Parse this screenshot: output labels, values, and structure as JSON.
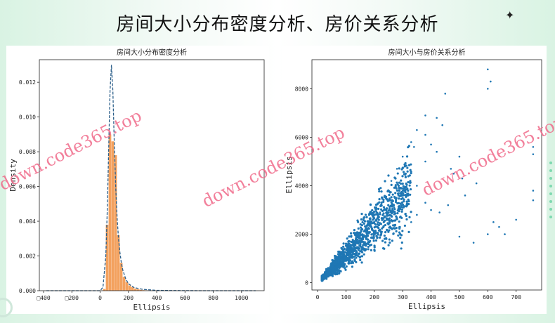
{
  "page": {
    "title": "房间大小分布密度分析、房价关系分析",
    "sparkle": "✦"
  },
  "watermarks": [
    "down.code365.top",
    "down.code365.top",
    "down.code365.top"
  ],
  "chart_data": [
    {
      "type": "bar",
      "title": "房间大小分布密度分析",
      "xlabel": "Ellipsis",
      "ylabel": "Density",
      "xlim": [
        -430,
        1160
      ],
      "ylim": [
        0,
        0.0133
      ],
      "xticks": [
        -400,
        -200,
        0,
        200,
        400,
        600,
        800,
        1000
      ],
      "xtick_labels": [
        "□400",
        "□200",
        "0",
        "200",
        "400",
        "600",
        "800",
        "1000"
      ],
      "yticks": [
        0.0,
        0.002,
        0.004,
        0.006,
        0.008,
        0.01,
        0.012
      ],
      "ytick_labels": [
        "0.000",
        "0.002",
        "0.004",
        "0.006",
        "0.008",
        "0.010",
        "0.012"
      ],
      "bin_edges": [
        20,
        40,
        60,
        80,
        100,
        120,
        140,
        160,
        180,
        200,
        220,
        240,
        260,
        280,
        300,
        320,
        340,
        360,
        380,
        400
      ],
      "values": [
        0.0001,
        0.0038,
        0.009,
        0.0086,
        0.0078,
        0.0032,
        0.0016,
        0.0008,
        0.0005,
        0.0003,
        0.0002,
        0.00012,
        8e-05,
        5e-05,
        3e-05,
        2e-05,
        1e-05,
        1e-05,
        1e-05
      ],
      "bar_color": "#f3a15e",
      "kde": {
        "x": [
          -380,
          0,
          20,
          40,
          50,
          60,
          70,
          80,
          90,
          100,
          110,
          120,
          130,
          140,
          150,
          160,
          180,
          200,
          240,
          300,
          400,
          500,
          700,
          1100
        ],
        "y": [
          0,
          0,
          0.0002,
          0.002,
          0.0045,
          0.008,
          0.0115,
          0.013,
          0.0115,
          0.0085,
          0.006,
          0.0042,
          0.003,
          0.0022,
          0.0016,
          0.0012,
          0.0007,
          0.0004,
          0.00018,
          8e-05,
          2e-05,
          1e-05,
          0,
          0
        ],
        "color": "#2c5f8a",
        "style": "dashed"
      }
    },
    {
      "type": "scatter",
      "title": "房间大小与房价关系分析",
      "xlabel": "Ellipsis",
      "ylabel": "Ellipsis",
      "xlim": [
        -20,
        790
      ],
      "ylim": [
        -300,
        9200
      ],
      "xticks": [
        0,
        100,
        200,
        300,
        400,
        500,
        600,
        700
      ],
      "yticks": [
        0,
        2000,
        4000,
        6000,
        8000
      ],
      "color": "#1f77b4",
      "points": [
        [
          600,
          8800
        ],
        [
          610,
          8300
        ],
        [
          600,
          8000
        ],
        [
          450,
          7800
        ],
        [
          380,
          6900
        ],
        [
          420,
          6800
        ],
        [
          440,
          6500
        ],
        [
          350,
          6300
        ],
        [
          380,
          6100
        ],
        [
          400,
          5700
        ],
        [
          420,
          5400
        ],
        [
          380,
          5000
        ],
        [
          470,
          4700
        ],
        [
          480,
          4500
        ],
        [
          500,
          5200
        ],
        [
          510,
          4300
        ],
        [
          560,
          4100
        ],
        [
          520,
          3600
        ],
        [
          460,
          3200
        ],
        [
          430,
          2900
        ],
        [
          620,
          2500
        ],
        [
          600,
          2000
        ],
        [
          700,
          2600
        ],
        [
          640,
          2300
        ],
        [
          660,
          2000
        ],
        [
          550,
          1650
        ],
        [
          500,
          1900
        ],
        [
          760,
          5600
        ],
        [
          760,
          5300
        ],
        [
          760,
          3800
        ],
        [
          760,
          3400
        ],
        [
          330,
          5800
        ],
        [
          340,
          5600
        ],
        [
          300,
          5200
        ],
        [
          280,
          4700
        ],
        [
          310,
          4400
        ],
        [
          260,
          4200
        ],
        [
          350,
          4000
        ],
        [
          300,
          3800
        ],
        [
          320,
          3600
        ],
        [
          250,
          3400
        ],
        [
          380,
          3300
        ],
        [
          270,
          3100
        ],
        [
          400,
          3000
        ],
        [
          220,
          2900
        ],
        [
          350,
          2800
        ],
        [
          290,
          2700
        ],
        [
          230,
          2600
        ],
        [
          330,
          2500
        ]
      ],
      "cluster": {
        "description_free": true,
        "n": 1400,
        "x_range": [
          15,
          330
        ],
        "slope": 11.5,
        "spread": 0.32
      }
    }
  ]
}
